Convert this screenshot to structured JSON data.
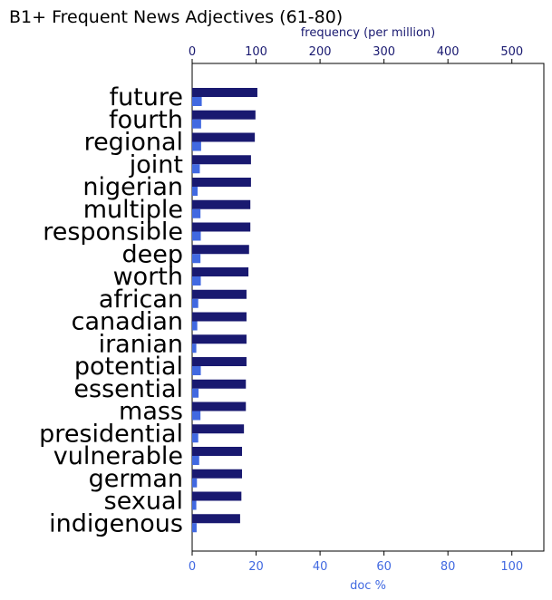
{
  "colors": {
    "frequency": "#191970",
    "doc_pct": "#4169E1"
  },
  "chart_data": {
    "type": "bar",
    "orientation": "horizontal",
    "title": "B1+ Frequent News Adjectives (61-80)",
    "categories": [
      "future",
      "fourth",
      "regional",
      "joint",
      "nigerian",
      "multiple",
      "responsible",
      "deep",
      "worth",
      "african",
      "canadian",
      "iranian",
      "potential",
      "essential",
      "mass",
      "presidential",
      "vulnerable",
      "german",
      "sexual",
      "indigenous"
    ],
    "series": [
      {
        "axis": "top",
        "color": "#191970",
        "values": [
          102,
          99,
          98,
          92,
          92,
          91,
          91,
          89,
          88,
          85,
          85,
          85,
          85,
          84,
          84,
          81,
          78,
          78,
          77,
          75
        ]
      },
      {
        "axis": "bottom",
        "color": "#4169E1",
        "values": [
          3.0,
          2.8,
          2.8,
          2.4,
          1.7,
          2.6,
          2.7,
          2.6,
          2.7,
          1.9,
          1.6,
          1.3,
          2.7,
          2.0,
          2.6,
          1.9,
          2.2,
          1.5,
          1.3,
          1.4
        ]
      }
    ],
    "x_top": {
      "label": "frequency (per million)",
      "lim": [
        0,
        550
      ],
      "ticks": [
        0,
        100,
        200,
        300,
        400,
        500
      ]
    },
    "x_bottom": {
      "label": "doc %",
      "lim": [
        0,
        110
      ],
      "ticks": [
        0,
        20,
        40,
        60,
        80,
        100
      ]
    },
    "grid": false,
    "legend": "none"
  }
}
